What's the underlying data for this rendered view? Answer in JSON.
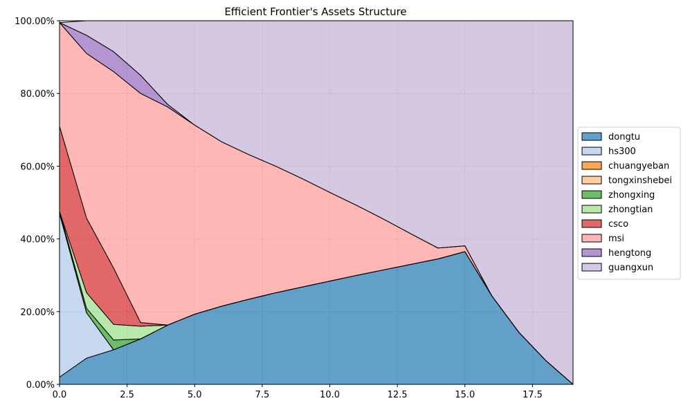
{
  "chart_data": {
    "type": "area",
    "stacked": true,
    "title": "Efficient Frontier's Assets Structure",
    "xlabel": "",
    "ylabel": "",
    "xlim": [
      0,
      19
    ],
    "ylim": [
      0,
      1
    ],
    "x_ticks": [
      0,
      2.5,
      5,
      7.5,
      10,
      12.5,
      15,
      17.5
    ],
    "x_tick_labels": [
      "0.0",
      "2.5",
      "5.0",
      "7.5",
      "10.0",
      "12.5",
      "15.0",
      "17.5"
    ],
    "y_ticks": [
      0,
      0.2,
      0.4,
      0.6,
      0.8,
      1.0
    ],
    "y_tick_labels": [
      "0.00%",
      "20.00%",
      "40.00%",
      "60.00%",
      "80.00%",
      "100.00%"
    ],
    "grid": true,
    "legend_position": "right",
    "x": [
      0,
      1,
      2,
      3,
      4,
      5,
      6,
      7,
      8,
      9,
      10,
      11,
      12,
      13,
      14,
      15,
      16,
      17,
      18,
      19
    ],
    "series": [
      {
        "name": "dongtu",
        "color": "#1f77b4",
        "values": [
          0.02,
          0.072,
          0.095,
          0.125,
          0.163,
          0.193,
          0.215,
          0.234,
          0.252,
          0.268,
          0.284,
          0.3,
          0.315,
          0.33,
          0.345,
          0.365,
          0.243,
          0.143,
          0.065,
          0.0
        ]
      },
      {
        "name": "hs300",
        "color": "#aec7e8",
        "values": [
          0.45,
          0.125,
          0.0,
          0.0,
          0.0,
          0.0,
          0.0,
          0.0,
          0.0,
          0.0,
          0.0,
          0.0,
          0.0,
          0.0,
          0.0,
          0.0,
          0.0,
          0.0,
          0.0,
          0.0
        ]
      },
      {
        "name": "chuangyeban",
        "color": "#ff7f0e",
        "values": [
          0.0,
          0.0,
          0.0,
          0.0,
          0.0,
          0.0,
          0.0,
          0.0,
          0.0,
          0.0,
          0.0,
          0.0,
          0.0,
          0.0,
          0.0,
          0.0,
          0.0,
          0.0,
          0.0,
          0.0
        ]
      },
      {
        "name": "tongxinshebei",
        "color": "#ffbb78",
        "values": [
          0.0,
          0.0,
          0.0,
          0.0,
          0.0,
          0.0,
          0.0,
          0.0,
          0.0,
          0.0,
          0.0,
          0.0,
          0.0,
          0.0,
          0.0,
          0.0,
          0.0,
          0.0,
          0.0,
          0.0
        ]
      },
      {
        "name": "zhongxing",
        "color": "#2ca02c",
        "values": [
          0.005,
          0.012,
          0.027,
          0.0,
          0.0,
          0.0,
          0.0,
          0.0,
          0.0,
          0.0,
          0.0,
          0.0,
          0.0,
          0.0,
          0.0,
          0.0,
          0.0,
          0.0,
          0.0,
          0.0
        ]
      },
      {
        "name": "zhongtian",
        "color": "#98df8a",
        "values": [
          0.0,
          0.043,
          0.043,
          0.035,
          0.0,
          0.0,
          0.0,
          0.0,
          0.0,
          0.0,
          0.0,
          0.0,
          0.0,
          0.0,
          0.0,
          0.0,
          0.0,
          0.0,
          0.0,
          0.0
        ]
      },
      {
        "name": "csco",
        "color": "#d62728",
        "values": [
          0.235,
          0.205,
          0.155,
          0.01,
          0.0,
          0.0,
          0.0,
          0.0,
          0.0,
          0.0,
          0.0,
          0.0,
          0.0,
          0.0,
          0.0,
          0.0,
          0.0,
          0.0,
          0.0,
          0.0
        ]
      },
      {
        "name": "msi",
        "color": "#ff9896",
        "values": [
          0.285,
          0.453,
          0.54,
          0.63,
          0.6,
          0.52,
          0.452,
          0.398,
          0.348,
          0.297,
          0.244,
          0.192,
          0.139,
          0.084,
          0.03,
          0.016,
          0.0,
          0.0,
          0.0,
          0.0
        ]
      },
      {
        "name": "hengtong",
        "color": "#9467bd",
        "values": [
          0.0,
          0.05,
          0.055,
          0.05,
          0.007,
          0.0,
          0.0,
          0.0,
          0.0,
          0.0,
          0.0,
          0.0,
          0.0,
          0.0,
          0.0,
          0.0,
          0.0,
          0.0,
          0.0,
          0.0
        ]
      },
      {
        "name": "guangxun",
        "color": "#c5b0d5",
        "values": [
          0.0,
          0.04,
          0.085,
          0.15,
          0.23,
          0.287,
          0.333,
          0.368,
          0.4,
          0.435,
          0.472,
          0.508,
          0.546,
          0.586,
          0.625,
          0.619,
          0.757,
          0.857,
          0.935,
          1.0
        ]
      }
    ]
  }
}
